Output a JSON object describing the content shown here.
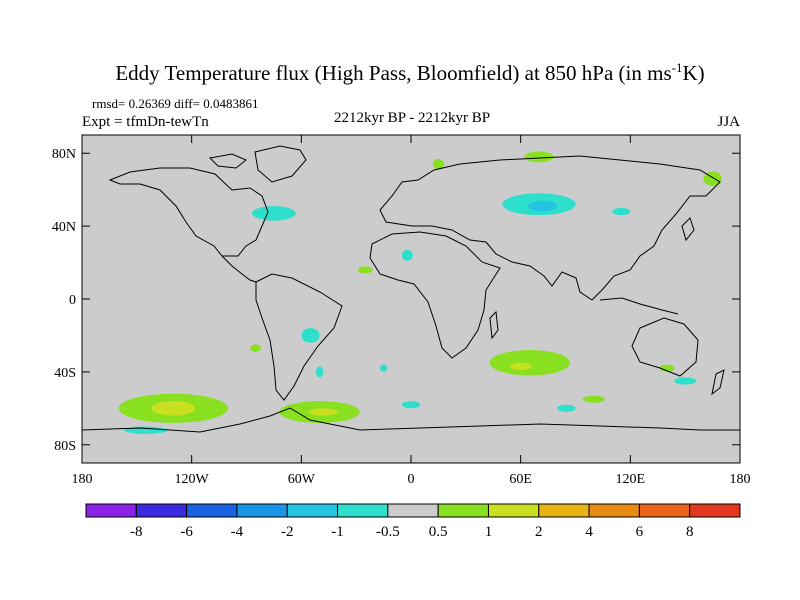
{
  "chart_data": {
    "type": "heatmap",
    "title": "Eddy Temperature flux (High Pass, Bloomfield) at 850 hPa (in ms",
    "title_sup": "-1",
    "title_end": "K)",
    "stats_text": "rmsd= 0.26369 diff= 0.0483861",
    "expt_text": "Expt = tfmDn-tewTn",
    "period_text": "2212kyr BP - 2212kyr BP",
    "season": "JJA",
    "projection": "cylindrical-equidistant",
    "lon_range": [
      -180,
      180
    ],
    "lat_range": [
      -90,
      90
    ],
    "x_ticks": [
      {
        "lon": -180,
        "label": "180"
      },
      {
        "lon": -120,
        "label": "120W"
      },
      {
        "lon": -60,
        "label": "60W"
      },
      {
        "lon": 0,
        "label": "0"
      },
      {
        "lon": 60,
        "label": "60E"
      },
      {
        "lon": 120,
        "label": "120E"
      },
      {
        "lon": 180,
        "label": "180"
      }
    ],
    "y_ticks": [
      {
        "lat": 80,
        "label": "80N"
      },
      {
        "lat": 40,
        "label": "40N"
      },
      {
        "lat": 0,
        "label": "0"
      },
      {
        "lat": -40,
        "label": "40S"
      },
      {
        "lat": -80,
        "label": "80S"
      }
    ],
    "colorbar": {
      "labels": [
        "-8",
        "-6",
        "-4",
        "-2",
        "-1",
        "-0.5",
        "0.5",
        "1",
        "2",
        "4",
        "6",
        "8"
      ],
      "colors": [
        "#8a22e8",
        "#3a2ae0",
        "#1a62e0",
        "#1a96e8",
        "#22c4e0",
        "#2ee0cc",
        "#cccccc",
        "#88e020",
        "#c8e020",
        "#e6b414",
        "#e88c14",
        "#e8641a",
        "#e2381e"
      ]
    },
    "anomaly_regions": [
      {
        "name": "arctic-siberia",
        "class": "0.5 to 1",
        "color": "#88e020",
        "lon": 70,
        "lat": 78,
        "rx": 8,
        "ry": 3
      },
      {
        "name": "north-atlantic-arctic",
        "class": "0.5 to 1",
        "color": "#88e020",
        "lon": 15,
        "lat": 74,
        "rx": 3,
        "ry": 3
      },
      {
        "name": "east-siberia",
        "class": "0.5 to 1",
        "color": "#88e020",
        "lon": 165,
        "lat": 66,
        "rx": 5,
        "ry": 4
      },
      {
        "name": "central-asia",
        "class": "-1 to -0.5",
        "color": "#2ee0cc",
        "lon": 70,
        "lat": 52,
        "rx": 20,
        "ry": 6
      },
      {
        "name": "central-asia-core",
        "class": "-2 to -1",
        "color": "#22c4e0",
        "lon": 72,
        "lat": 51,
        "rx": 8,
        "ry": 3
      },
      {
        "name": "hudson-bay",
        "class": "-1 to -0.5",
        "color": "#2ee0cc",
        "lon": -75,
        "lat": 47,
        "rx": 12,
        "ry": 4
      },
      {
        "name": "north-pacific-asia",
        "class": "-1 to -0.5",
        "color": "#2ee0cc",
        "lon": 115,
        "lat": 48,
        "rx": 5,
        "ry": 2
      },
      {
        "name": "north-africa",
        "class": "-1 to -0.5",
        "color": "#2ee0cc",
        "lon": -2,
        "lat": 24,
        "rx": 3,
        "ry": 3
      },
      {
        "name": "west-africa",
        "class": "0.5 to 1",
        "color": "#88e020",
        "lon": -25,
        "lat": 16,
        "rx": 4,
        "ry": 2
      },
      {
        "name": "south-america-central",
        "class": "-1 to -0.5",
        "color": "#2ee0cc",
        "lon": -55,
        "lat": -20,
        "rx": 5,
        "ry": 4
      },
      {
        "name": "east-pacific",
        "class": "0.5 to 1",
        "color": "#88e020",
        "lon": -85,
        "lat": -27,
        "rx": 3,
        "ry": 2
      },
      {
        "name": "south-atlantic-west",
        "class": "-1 to -0.5",
        "color": "#2ee0cc",
        "lon": -50,
        "lat": -40,
        "rx": 2,
        "ry": 3
      },
      {
        "name": "south-atlantic-east",
        "class": "-1 to -0.5",
        "color": "#2ee0cc",
        "lon": -15,
        "lat": -38,
        "rx": 2,
        "ry": 2
      },
      {
        "name": "south-indian-ocean",
        "class": "0.5 to 1",
        "color": "#88e020",
        "lon": 65,
        "lat": -35,
        "rx": 22,
        "ry": 7
      },
      {
        "name": "south-indian-ocean-core",
        "class": "1 to 2",
        "color": "#c8e020",
        "lon": 60,
        "lat": -37,
        "rx": 6,
        "ry": 2
      },
      {
        "name": "south-pacific-west",
        "class": "0.5 to 1",
        "color": "#88e020",
        "lon": -130,
        "lat": -60,
        "rx": 30,
        "ry": 8
      },
      {
        "name": "south-pacific-west-core",
        "class": "1 to 2",
        "color": "#c8e020",
        "lon": -130,
        "lat": -60,
        "rx": 12,
        "ry": 4
      },
      {
        "name": "drake-passage",
        "class": "0.5 to 1",
        "color": "#88e020",
        "lon": -50,
        "lat": -62,
        "rx": 22,
        "ry": 6
      },
      {
        "name": "drake-passage-core",
        "class": "1 to 2",
        "color": "#c8e020",
        "lon": -48,
        "lat": -62,
        "rx": 8,
        "ry": 2
      },
      {
        "name": "australia-east",
        "class": "-1 to -0.5",
        "color": "#2ee0cc",
        "lon": 150,
        "lat": -45,
        "rx": 6,
        "ry": 2
      },
      {
        "name": "southern-ocean-60e",
        "class": "0.5 to 1",
        "color": "#88e020",
        "lon": 100,
        "lat": -55,
        "rx": 6,
        "ry": 2
      },
      {
        "name": "southern-ocean-90e",
        "class": "-1 to -0.5",
        "color": "#2ee0cc",
        "lon": 85,
        "lat": -60,
        "rx": 5,
        "ry": 2
      },
      {
        "name": "southern-ocean-0",
        "class": "-1 to -0.5",
        "color": "#2ee0cc",
        "lon": 0,
        "lat": -58,
        "rx": 5,
        "ry": 2
      },
      {
        "name": "ross-sea",
        "class": "-1 to -0.5",
        "color": "#2ee0cc",
        "lon": -145,
        "lat": -72,
        "rx": 12,
        "ry": 2
      },
      {
        "name": "australia-south",
        "class": "0.5 to 1",
        "color": "#88e020",
        "lon": 140,
        "lat": -38,
        "rx": 4,
        "ry": 2
      }
    ]
  }
}
